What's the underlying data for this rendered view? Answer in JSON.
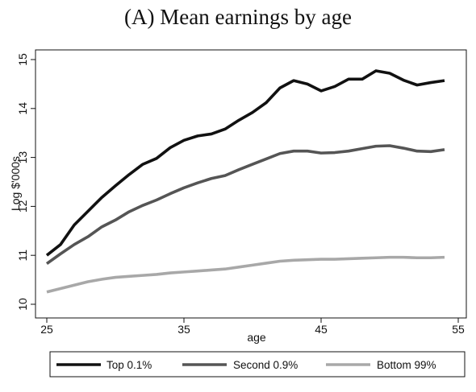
{
  "chart_data": {
    "type": "line",
    "title": "(A) Mean earnings by age",
    "xlabel": "age",
    "ylabel": "Log $'000s",
    "xlim": [
      25,
      55
    ],
    "ylim": [
      10,
      15
    ],
    "xticks": [
      25,
      35,
      45,
      55
    ],
    "yticks": [
      10,
      11,
      12,
      13,
      14,
      15
    ],
    "grid": false,
    "legend_position": "bottom",
    "x": [
      25,
      26,
      27,
      28,
      29,
      30,
      31,
      32,
      33,
      34,
      35,
      36,
      37,
      38,
      39,
      40,
      41,
      42,
      43,
      44,
      45,
      46,
      47,
      48,
      49,
      50,
      51,
      52,
      53,
      54
    ],
    "series": [
      {
        "name": "Top 0.1%",
        "color": "#111111",
        "values": [
          11.0,
          11.22,
          11.62,
          11.9,
          12.18,
          12.42,
          12.65,
          12.86,
          12.98,
          13.2,
          13.35,
          13.44,
          13.48,
          13.58,
          13.76,
          13.92,
          14.12,
          14.42,
          14.57,
          14.5,
          14.36,
          14.45,
          14.6,
          14.6,
          14.77,
          14.72,
          14.58,
          14.48,
          14.53,
          14.57
        ]
      },
      {
        "name": "Second 0.9%",
        "color": "#555555",
        "values": [
          10.83,
          11.03,
          11.22,
          11.38,
          11.58,
          11.72,
          11.89,
          12.02,
          12.13,
          12.26,
          12.38,
          12.48,
          12.57,
          12.63,
          12.75,
          12.86,
          12.97,
          13.08,
          13.13,
          13.13,
          13.09,
          13.1,
          13.13,
          13.18,
          13.23,
          13.24,
          13.19,
          13.13,
          13.12,
          13.16
        ]
      },
      {
        "name": "Bottom 99%",
        "color": "#a8a8a8",
        "values": [
          10.25,
          10.32,
          10.39,
          10.46,
          10.51,
          10.55,
          10.57,
          10.59,
          10.61,
          10.64,
          10.66,
          10.68,
          10.7,
          10.72,
          10.76,
          10.8,
          10.84,
          10.88,
          10.9,
          10.91,
          10.92,
          10.92,
          10.93,
          10.94,
          10.95,
          10.96,
          10.96,
          10.95,
          10.95,
          10.96
        ]
      }
    ]
  }
}
